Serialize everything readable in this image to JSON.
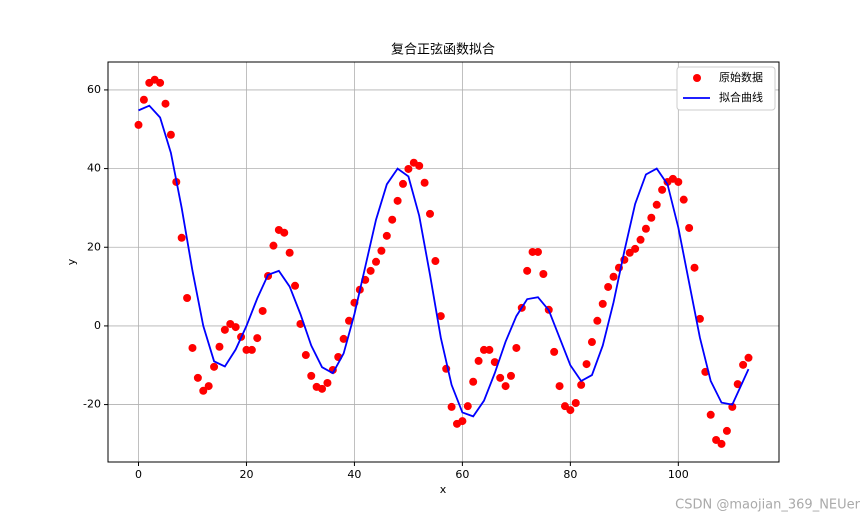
{
  "chart_data": {
    "type": "combo",
    "title": "复合正弦函数拟合",
    "xlabel": "x",
    "ylabel": "y",
    "xlim": [
      -5.65,
      118.65
    ],
    "ylim": [
      -34.6,
      67.1
    ],
    "xticks": [
      0,
      20,
      40,
      60,
      80,
      100
    ],
    "yticks": [
      -20,
      0,
      20,
      40,
      60
    ],
    "grid": true,
    "legend": "upper right",
    "series": [
      {
        "name": "原始数据",
        "type": "scatter",
        "color": "#ff0000",
        "x": [
          0,
          1,
          2,
          3,
          4,
          5,
          6,
          7,
          8,
          9,
          10,
          11,
          12,
          13,
          14,
          15,
          16,
          17,
          18,
          19,
          20,
          21,
          22,
          23,
          24,
          25,
          26,
          27,
          28,
          29,
          30,
          31,
          32,
          33,
          34,
          35,
          36,
          37,
          38,
          39,
          40,
          41,
          42,
          43,
          44,
          45,
          46,
          47,
          48,
          49,
          50,
          51,
          52,
          53,
          54,
          55,
          56,
          57,
          58,
          59,
          60,
          61,
          62,
          63,
          64,
          65,
          66,
          67,
          68,
          69,
          70,
          71,
          72,
          73,
          74,
          75,
          76,
          77,
          78,
          79,
          80,
          81,
          82,
          83,
          84,
          85,
          86,
          87,
          88,
          89,
          90,
          91,
          92,
          93,
          94,
          95,
          96,
          97,
          98,
          99,
          100,
          101,
          102,
          103,
          104,
          105,
          106,
          107,
          108,
          109,
          110,
          111,
          112,
          113
        ],
        "values": [
          51.1,
          57.5,
          61.8,
          62.6,
          61.8,
          56.5,
          48.6,
          36.6,
          22.4,
          7.1,
          -5.6,
          -13.2,
          -16.5,
          -15.3,
          -10.4,
          -5.3,
          -1.0,
          0.5,
          -0.3,
          -2.8,
          -6.1,
          -6.1,
          -3.1,
          3.8,
          12.7,
          20.4,
          24.4,
          23.7,
          18.6,
          10.2,
          0.5,
          -7.4,
          -12.7,
          -15.5,
          -16.0,
          -14.5,
          -11.2,
          -7.9,
          -3.3,
          1.3,
          5.9,
          9.2,
          11.7,
          14.0,
          16.3,
          19.1,
          22.9,
          27.0,
          31.8,
          36.1,
          39.9,
          41.5,
          40.7,
          36.4,
          28.5,
          16.5,
          2.5,
          -10.9,
          -20.6,
          -24.9,
          -24.2,
          -20.4,
          -14.2,
          -8.9,
          -6.1,
          -6.1,
          -9.2,
          -13.2,
          -15.3,
          -12.7,
          -5.6,
          4.6,
          14.0,
          18.8,
          18.8,
          13.2,
          4.1,
          -6.6,
          -15.3,
          -20.4,
          -21.4,
          -19.6,
          -15.0,
          -9.7,
          -4.1,
          1.3,
          5.6,
          9.9,
          12.5,
          14.8,
          16.8,
          18.6,
          19.6,
          21.9,
          24.7,
          27.5,
          30.8,
          34.6,
          36.6,
          37.4,
          36.6,
          32.1,
          24.9,
          14.8,
          1.8,
          -11.7,
          -22.6,
          -29.0,
          -30.0,
          -26.7,
          -20.6,
          -14.8,
          -9.9,
          -8.1
        ]
      },
      {
        "name": "拟合曲线",
        "type": "line",
        "color": "#0000ff",
        "x": [
          0,
          2,
          4,
          6,
          8,
          10,
          12,
          14,
          16,
          18,
          20,
          22,
          24,
          26,
          28,
          30,
          32,
          34,
          36,
          38,
          40,
          42,
          44,
          46,
          48,
          50,
          52,
          54,
          56,
          58,
          60,
          62,
          64,
          66,
          68,
          70,
          72,
          74,
          76,
          78,
          80,
          82,
          84,
          86,
          88,
          90,
          92,
          94,
          96,
          98,
          100,
          102,
          104,
          106,
          108,
          110,
          112,
          113
        ],
        "values": [
          54.8,
          56.0,
          53,
          44,
          30,
          14,
          0,
          -9,
          -10.3,
          -6,
          0,
          7,
          13,
          14,
          10,
          3,
          -5,
          -10.5,
          -12,
          -7,
          3,
          15,
          27,
          36,
          40,
          38,
          28,
          13,
          -3,
          -15,
          -22,
          -23,
          -19,
          -12,
          -4,
          2.5,
          6.8,
          7.3,
          4,
          -3,
          -10,
          -14,
          -12.5,
          -5,
          6,
          19,
          31,
          38.5,
          40,
          36,
          25,
          11,
          -3,
          -14,
          -19.5,
          -20,
          -14,
          -11
        ]
      }
    ]
  },
  "watermark": "CSDN @maojian_369_NEUer"
}
